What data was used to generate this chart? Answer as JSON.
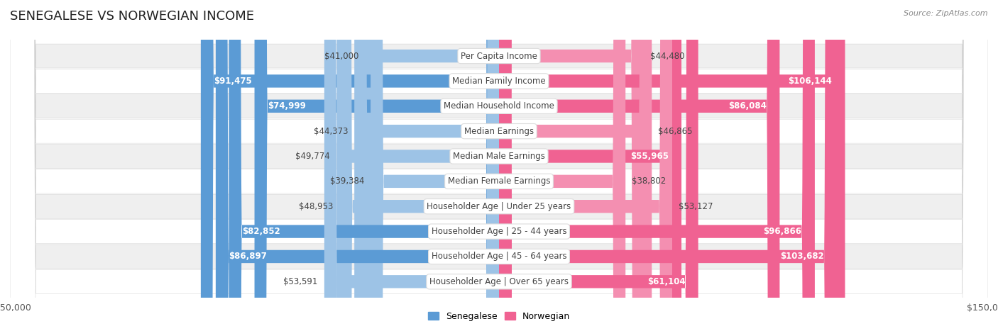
{
  "title": "SENEGALESE VS NORWEGIAN INCOME",
  "source": "Source: ZipAtlas.com",
  "categories": [
    "Per Capita Income",
    "Median Family Income",
    "Median Household Income",
    "Median Earnings",
    "Median Male Earnings",
    "Median Female Earnings",
    "Householder Age | Under 25 years",
    "Householder Age | 25 - 44 years",
    "Householder Age | 45 - 64 years",
    "Householder Age | Over 65 years"
  ],
  "senegalese": [
    41000,
    91475,
    74999,
    44373,
    49774,
    39384,
    48953,
    82852,
    86897,
    53591
  ],
  "norwegian": [
    44480,
    106144,
    86084,
    46865,
    55965,
    38802,
    53127,
    96866,
    103682,
    61104
  ],
  "senegalese_labels": [
    "$41,000",
    "$91,475",
    "$74,999",
    "$44,373",
    "$49,774",
    "$39,384",
    "$48,953",
    "$82,852",
    "$86,897",
    "$53,591"
  ],
  "norwegian_labels": [
    "$44,480",
    "$106,144",
    "$86,084",
    "$46,865",
    "$55,965",
    "$38,802",
    "$53,127",
    "$96,866",
    "$103,682",
    "$61,104"
  ],
  "senegalese_color_dark": "#5b9bd5",
  "senegalese_color_light": "#9dc3e6",
  "norwegian_color_dark": "#f06292",
  "norwegian_color_light": "#f48fb1",
  "inside_label_white_threshold": 55000,
  "bg_row_color": "#efefef",
  "bg_white": "#ffffff",
  "max_val": 150000,
  "bar_height": 0.52,
  "title_fontsize": 13,
  "label_fontsize": 8.5,
  "category_fontsize": 8.5,
  "legend_fontsize": 9,
  "axis_label_fontsize": 9
}
